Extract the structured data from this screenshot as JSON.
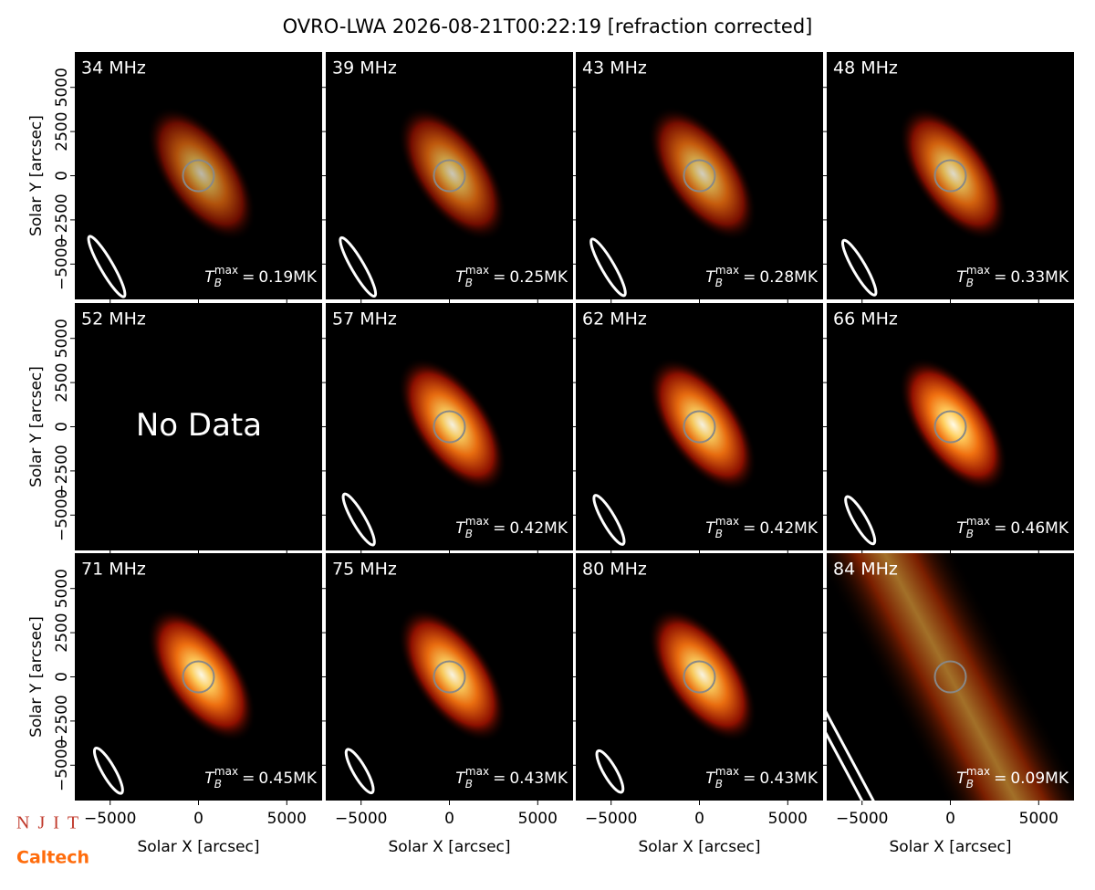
{
  "chart_data": {
    "type": "image-grid",
    "title": "OVRO-LWA 2026-08-21T00:22:19 [refraction corrected]",
    "xlabel": "Solar X [arcsec]",
    "ylabel": "Solar Y [arcsec]",
    "xlim": [
      -7000,
      7000
    ],
    "ylim": [
      -7000,
      7000
    ],
    "xticks": [
      {
        "value": -5000,
        "label": "−5000"
      },
      0,
      5000
    ],
    "yticks": [
      {
        "value": -5000,
        "label": "−5000"
      },
      {
        "value": -2500,
        "label": "−2500"
      },
      0,
      2500,
      5000
    ],
    "tb_symbol": {
      "base": "T",
      "sub": "B",
      "sup": "max",
      "eq": "="
    },
    "panels": [
      {
        "freq": "34 MHz",
        "tb_max": 0.19,
        "value_label": "0.19MK"
      },
      {
        "freq": "39 MHz",
        "tb_max": 0.25,
        "value_label": "0.25MK"
      },
      {
        "freq": "43 MHz",
        "tb_max": 0.28,
        "value_label": "0.28MK"
      },
      {
        "freq": "48 MHz",
        "tb_max": 0.33,
        "value_label": "0.33MK"
      },
      {
        "freq": "52 MHz",
        "note": "No Data"
      },
      {
        "freq": "57 MHz",
        "tb_max": 0.42,
        "value_label": "0.42MK"
      },
      {
        "freq": "62 MHz",
        "tb_max": 0.42,
        "value_label": "0.42MK"
      },
      {
        "freq": "66 MHz",
        "tb_max": 0.46,
        "value_label": "0.46MK"
      },
      {
        "freq": "71 MHz",
        "tb_max": 0.45,
        "value_label": "0.45MK"
      },
      {
        "freq": "75 MHz",
        "tb_max": 0.43,
        "value_label": "0.43MK"
      },
      {
        "freq": "80 MHz",
        "tb_max": 0.43,
        "value_label": "0.43MK"
      },
      {
        "freq": "84 MHz",
        "tb_max": 0.09,
        "value_label": "0.09MK"
      }
    ]
  },
  "logos": {
    "njit": "NJIT",
    "caltech": "Caltech"
  }
}
